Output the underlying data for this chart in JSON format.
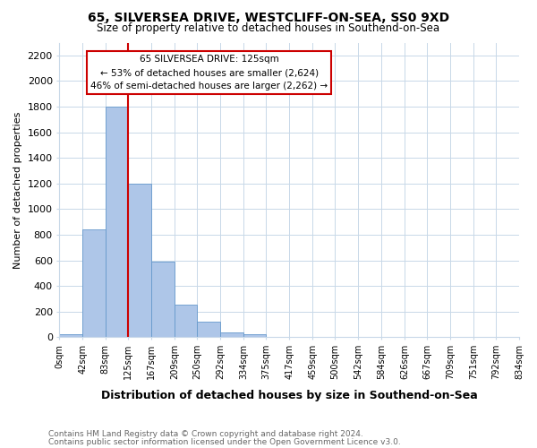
{
  "title": "65, SILVERSEA DRIVE, WESTCLIFF-ON-SEA, SS0 9XD",
  "subtitle": "Size of property relative to detached houses in Southend-on-Sea",
  "xlabel": "Distribution of detached houses by size in Southend-on-Sea",
  "ylabel": "Number of detached properties",
  "footnote1": "Contains HM Land Registry data © Crown copyright and database right 2024.",
  "footnote2": "Contains public sector information licensed under the Open Government Licence v3.0.",
  "bin_edges": [
    0,
    42,
    83,
    125,
    167,
    209,
    250,
    292,
    334,
    375,
    417,
    459,
    500,
    542,
    584,
    626,
    667,
    709,
    751,
    792,
    834
  ],
  "bar_heights": [
    25,
    840,
    1800,
    1200,
    590,
    255,
    125,
    40,
    25,
    0,
    0,
    0,
    0,
    0,
    0,
    0,
    0,
    0,
    0,
    0
  ],
  "bar_color": "#aec6e8",
  "bar_edge_color": "#6699cc",
  "property_line_x": 125,
  "property_line_color": "#cc0000",
  "annotation_line1": "65 SILVERSEA DRIVE: 125sqm",
  "annotation_line2": "← 53% of detached houses are smaller (2,624)",
  "annotation_line3": "46% of semi-detached houses are larger (2,262) →",
  "annotation_box_color": "#ffffff",
  "annotation_box_edge_color": "#cc0000",
  "ylim": [
    0,
    2300
  ],
  "yticks": [
    0,
    200,
    400,
    600,
    800,
    1000,
    1200,
    1400,
    1600,
    1800,
    2000,
    2200
  ],
  "background_color": "#ffffff",
  "grid_color": "#c8d8e8"
}
